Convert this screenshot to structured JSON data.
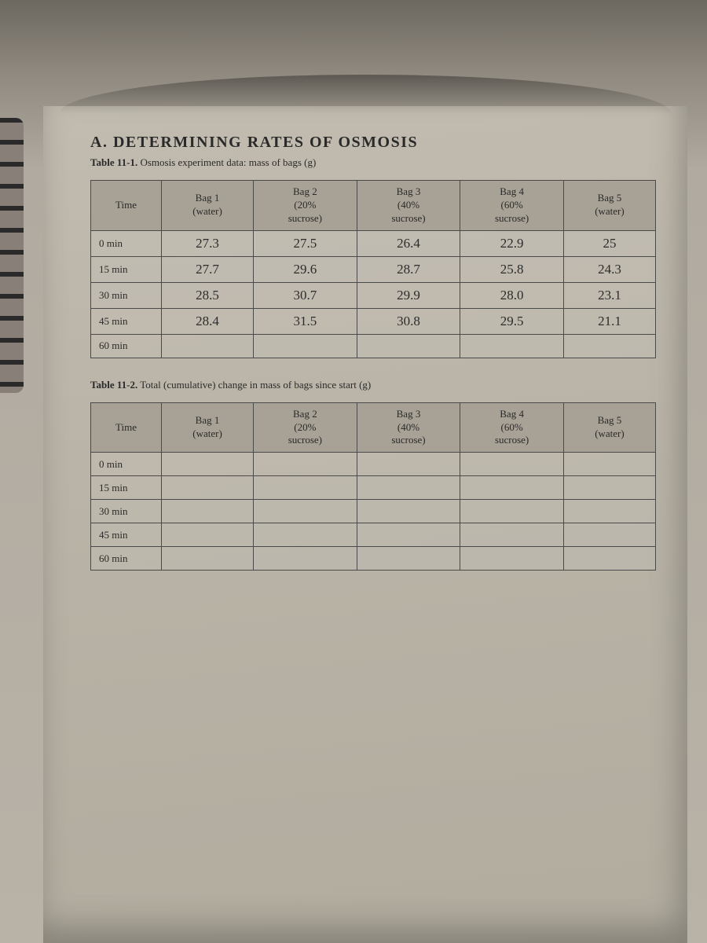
{
  "page_bg_color": "#b0aaa0",
  "section_heading": "A. DETERMINING RATES OF OSMOSIS",
  "table1": {
    "caption_bold": "Table 11-1.",
    "caption_rest": " Osmosis experiment data: mass of bags (g)",
    "columns": [
      "Time",
      "Bag 1\n(water)",
      "Bag 2\n(20%\nsucrose)",
      "Bag 3\n(40%\nsucrose)",
      "Bag 4\n(60%\nsucrose)",
      "Bag 5\n(water)"
    ],
    "time_labels": [
      "0 min",
      "15 min",
      "30 min",
      "45 min",
      "60 min"
    ],
    "data": [
      [
        "27.3",
        "27.5",
        "26.4",
        "22.9",
        "25"
      ],
      [
        "27.7",
        "29.6",
        "28.7",
        "25.8",
        "24.3"
      ],
      [
        "28.5",
        "30.7",
        "29.9",
        "28.0",
        "23.1"
      ],
      [
        "28.4",
        "31.5",
        "30.8",
        "29.5",
        "21.1"
      ],
      [
        "",
        "",
        "",
        "",
        ""
      ]
    ],
    "header_bg": "#a8a296",
    "border_color": "#4a4a4a",
    "print_font_size": 13,
    "hand_font_size": 17,
    "hand_color": "#2c2c2c"
  },
  "table2": {
    "caption_bold": "Table 11-2.",
    "caption_rest": " Total (cumulative) change in mass of bags since start (g)",
    "columns": [
      "Time",
      "Bag 1\n(water)",
      "Bag 2\n(20%\nsucrose)",
      "Bag 3\n(40%\nsucrose)",
      "Bag 4\n(60%\nsucrose)",
      "Bag 5\n(water)"
    ],
    "time_labels": [
      "0 min",
      "15 min",
      "30 min",
      "45 min",
      "60 min"
    ],
    "data": [
      [
        "",
        "",
        "",
        "",
        ""
      ],
      [
        "",
        "",
        "",
        "",
        ""
      ],
      [
        "",
        "",
        "",
        "",
        ""
      ],
      [
        "",
        "",
        "",
        "",
        ""
      ],
      [
        "",
        "",
        "",
        "",
        ""
      ]
    ]
  }
}
